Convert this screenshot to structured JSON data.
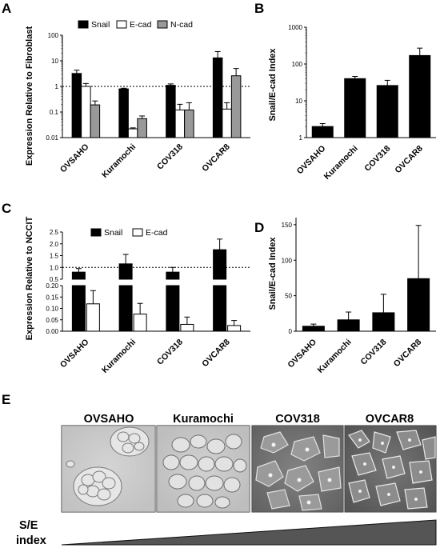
{
  "colors": {
    "snail": "#000000",
    "ecad": "#ffffff",
    "ncad": "#999999",
    "wedge": "#555555"
  },
  "panel_labels": {
    "a": "A",
    "b": "B",
    "c": "C",
    "d": "D",
    "e": "E"
  },
  "chart_data": [
    {
      "id": "A",
      "type": "bar",
      "scale": "log",
      "ylabel": "Expression Relative to Fibroblast",
      "ylim": [
        0.01,
        100
      ],
      "yticks": [
        "100",
        "10",
        "1",
        "0.1",
        "0.01"
      ],
      "reference_line": 1,
      "categories": [
        "OVSAHO",
        "Kuramochi",
        "COV318",
        "OVCAR8"
      ],
      "legend": [
        "Snail",
        "E-cad",
        "N-cad"
      ],
      "series": [
        {
          "name": "Snail",
          "values": [
            3.2,
            0.8,
            1.1,
            13
          ],
          "errors": [
            4.3,
            0.85,
            1.25,
            23
          ]
        },
        {
          "name": "E-cad",
          "values": [
            1.0,
            0.022,
            0.12,
            0.13
          ],
          "errors": [
            1.3,
            0.024,
            0.2,
            0.23
          ]
        },
        {
          "name": "N-cad",
          "values": [
            0.19,
            0.055,
            0.12,
            2.6
          ],
          "errors": [
            0.27,
            0.07,
            0.23,
            5.0
          ]
        }
      ]
    },
    {
      "id": "B",
      "type": "bar",
      "scale": "log",
      "ylabel": "Snail/E-cad Index",
      "ylim": [
        1,
        1000
      ],
      "yticks": [
        "1000",
        "100",
        "10",
        "1"
      ],
      "categories": [
        "OVSAHO",
        "Kuramochi",
        "COV318",
        "OVCAR8"
      ],
      "series": [
        {
          "name": "",
          "values": [
            2.0,
            40,
            26,
            170
          ],
          "errors": [
            2.4,
            46,
            36,
            270
          ]
        }
      ]
    },
    {
      "id": "C",
      "type": "bar",
      "scale": "broken-linear",
      "ylabel": "Expression Relative to NCCIT",
      "upper_ylim": [
        0.5,
        2.5
      ],
      "lower_ylim": [
        0,
        0.2
      ],
      "upper_yticks": [
        "2.5",
        "2.0",
        "1.5",
        "1.0",
        "0.5"
      ],
      "lower_yticks": [
        "0.20",
        "0.15",
        "0.10",
        "0.05",
        "0.00"
      ],
      "reference_line": 1.0,
      "categories": [
        "OVSAHO",
        "Kuramochi",
        "COV318",
        "OVCAR8"
      ],
      "legend": [
        "Snail",
        "E-cad"
      ],
      "series": [
        {
          "name": "Snail",
          "values": [
            0.8,
            1.15,
            0.8,
            1.75
          ],
          "errors": [
            0.95,
            1.55,
            1.0,
            2.2
          ]
        },
        {
          "name": "E-cad",
          "values": [
            0.12,
            0.075,
            0.03,
            0.025
          ],
          "errors": [
            0.178,
            0.122,
            0.062,
            0.047
          ]
        }
      ]
    },
    {
      "id": "D",
      "type": "bar",
      "scale": "linear",
      "ylabel": "Snail/E-cad Index",
      "ylim": [
        0,
        160
      ],
      "yticks": [
        "150",
        "100",
        "50",
        "0"
      ],
      "categories": [
        "OVSAHO",
        "Kuramochi",
        "COV318",
        "OVCAR8"
      ],
      "series": [
        {
          "name": "",
          "values": [
            7,
            16,
            26,
            74
          ],
          "errors": [
            10,
            27,
            52,
            149
          ]
        }
      ]
    }
  ],
  "micrographs": {
    "titles": [
      "OVSAHO",
      "Kuramochi",
      "COV318",
      "OVCAR8"
    ],
    "index_label_1": "S/E",
    "index_label_2": "index"
  }
}
